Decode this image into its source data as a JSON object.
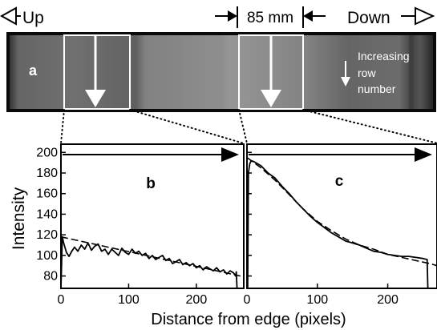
{
  "header": {
    "up_label": "Up",
    "down_label": "Down",
    "width_label": "85 mm"
  },
  "strip": {
    "panel_label": "a",
    "annotation_line1": "Increasing",
    "annotation_line2": "row",
    "annotation_line3": "number"
  },
  "colors": {
    "background": "#ffffff",
    "strip_dark": "#0a0a0a",
    "strip_light": "#8a8a8a",
    "curve": "#000000",
    "fit": "#000000",
    "selection_box": "#ffffff"
  },
  "axes": {
    "ylabel": "Intensity",
    "xlabel": "Distance from edge (pixels)"
  },
  "chart_data": [
    {
      "type": "line",
      "panel_label": "b",
      "xlim": [
        0,
        270
      ],
      "ylim": [
        68,
        208
      ],
      "xticks": [
        0,
        100,
        200
      ],
      "yticks": [
        80,
        100,
        120,
        140,
        160,
        180,
        200
      ],
      "series": [
        {
          "style": "measured",
          "x": [
            0,
            2,
            4,
            8,
            12,
            16,
            20,
            25,
            30,
            35,
            40,
            45,
            50,
            55,
            60,
            65,
            70,
            75,
            80,
            85,
            90,
            95,
            100,
            105,
            110,
            115,
            120,
            125,
            130,
            135,
            140,
            145,
            150,
            155,
            160,
            165,
            170,
            175,
            180,
            185,
            190,
            195,
            200,
            205,
            210,
            215,
            220,
            225,
            230,
            235,
            240,
            245,
            250,
            255,
            258,
            259,
            260
          ],
          "y": [
            68,
            118,
            112,
            103,
            99,
            104,
            108,
            104,
            110,
            106,
            112,
            105,
            109,
            111,
            104,
            106,
            101,
            106,
            103,
            100,
            107,
            103,
            101,
            106,
            102,
            104,
            100,
            102,
            97,
            100,
            96,
            98,
            100,
            95,
            97,
            92,
            94,
            96,
            91,
            93,
            90,
            92,
            88,
            90,
            86,
            89,
            87,
            85,
            88,
            84,
            86,
            82,
            85,
            83,
            80,
            84,
            68
          ]
        },
        {
          "style": "fit",
          "x": [
            0,
            265
          ],
          "y": [
            118,
            80
          ]
        }
      ]
    },
    {
      "type": "line",
      "panel_label": "c",
      "xlim": [
        0,
        270
      ],
      "ylim": [
        68,
        208
      ],
      "xticks": [
        0,
        100,
        200
      ],
      "yticks": [
        80,
        100,
        120,
        140,
        160,
        180,
        200
      ],
      "series": [
        {
          "style": "measured",
          "x": [
            1,
            2,
            4,
            6,
            10,
            15,
            20,
            30,
            40,
            50,
            60,
            70,
            80,
            90,
            100,
            110,
            120,
            130,
            140,
            150,
            160,
            170,
            180,
            190,
            200,
            210,
            220,
            230,
            240,
            250,
            256,
            257
          ],
          "y": [
            68,
            180,
            189,
            192,
            191,
            189,
            187,
            180,
            175,
            167,
            160,
            152,
            145,
            138,
            132,
            127,
            122,
            118,
            114,
            112,
            110,
            107,
            104,
            103,
            101,
            100,
            99,
            99,
            98,
            97,
            96,
            68
          ]
        },
        {
          "style": "fit",
          "x": [
            0,
            10,
            20,
            30,
            40,
            50,
            60,
            70,
            80,
            90,
            100,
            120,
            140,
            160,
            180,
            200,
            220,
            240,
            260,
            270
          ],
          "y": [
            195,
            190,
            185,
            179,
            173,
            166,
            159,
            152,
            145,
            139,
            133,
            124,
            116,
            110,
            106,
            101,
            98,
            95,
            92,
            90
          ]
        }
      ]
    }
  ]
}
